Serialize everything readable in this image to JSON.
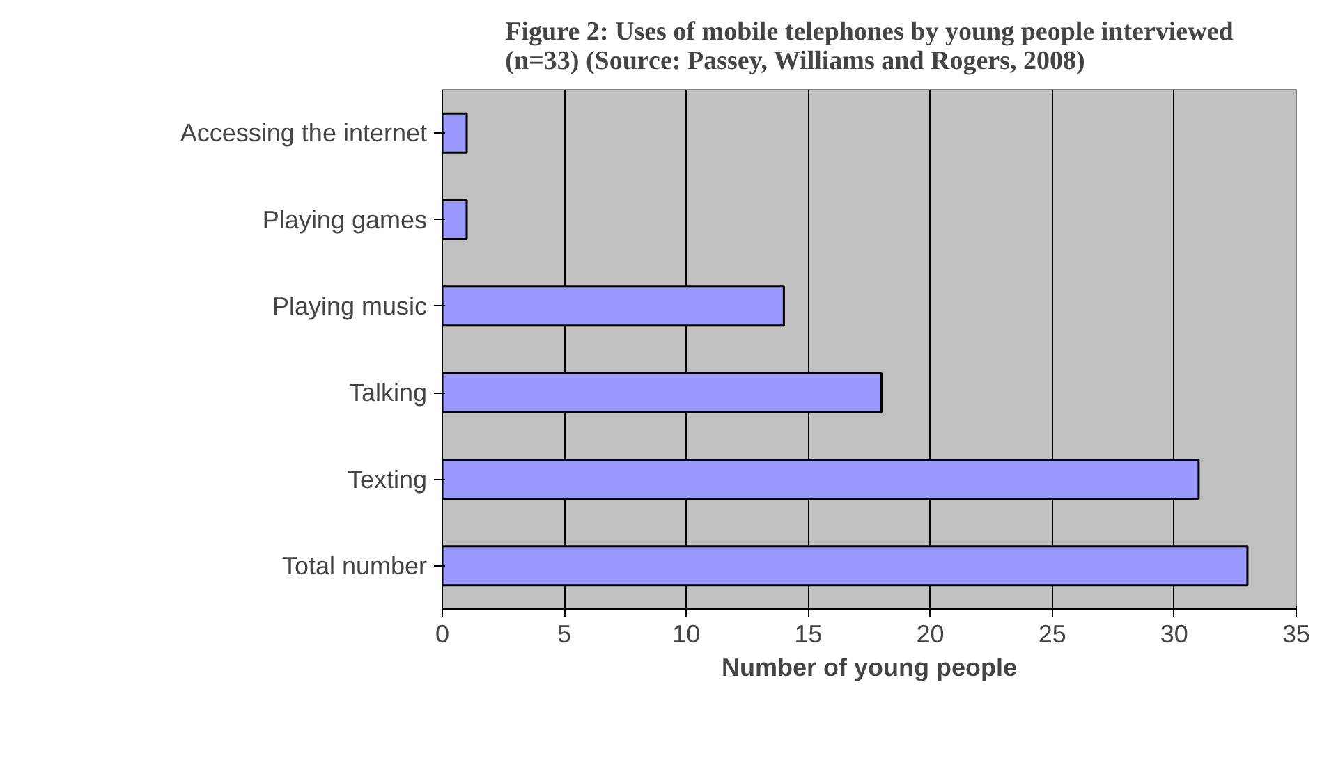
{
  "chart_data": {
    "type": "bar",
    "orientation": "horizontal",
    "title": "Figure 2: Uses of mobile telephones by young people interviewed\n(n=33) (Source: Passey, Williams and Rogers, 2008)",
    "xlabel": "Number of young people",
    "categories": [
      "Accessing the internet",
      "Playing games",
      "Playing music",
      "Talking",
      "Texting",
      "Total number"
    ],
    "values": [
      1,
      1,
      14,
      18,
      31,
      33
    ],
    "color": "#9999ff",
    "xlim": [
      0,
      35
    ],
    "xticks": [
      0,
      5,
      10,
      15,
      20,
      25,
      30,
      35
    ],
    "grid": "x"
  }
}
